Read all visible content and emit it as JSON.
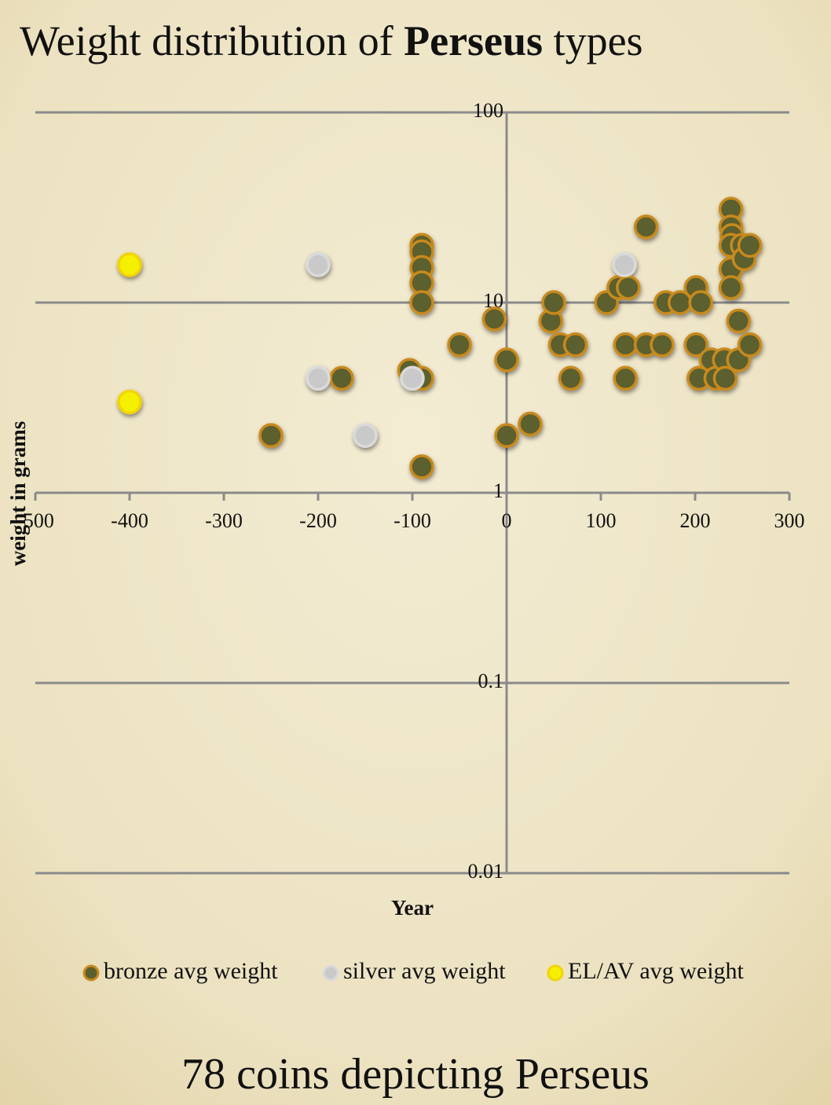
{
  "chart_data": {
    "type": "scatter",
    "title_parts": [
      {
        "text": "Weight distribution of "
      },
      {
        "text": "Perseus",
        "bold": true
      },
      {
        "text": " types"
      }
    ],
    "xlabel": "Year",
    "ylabel": "weight in grams",
    "footer": "78 coins depicting Perseus",
    "log_y": true,
    "xlim": [
      -500,
      300
    ],
    "ylim": [
      0.01,
      100
    ],
    "xticks": [
      -500,
      -400,
      -300,
      -200,
      -100,
      0,
      100,
      200,
      300
    ],
    "yticks": [
      0.01,
      0.1,
      1,
      10,
      100
    ],
    "grid": true,
    "y_axis_at": 0,
    "x_axis_at": 1,
    "legend": "bottom",
    "series": [
      {
        "name": "bronze avg weight",
        "color": "#5c5f2e",
        "edgecolor": "#c88a1f",
        "x": [
          -250,
          -175,
          -90,
          -90,
          -90,
          -90,
          -90,
          -90,
          -90,
          -103,
          -50,
          -13,
          0,
          0,
          25,
          47,
          50,
          57,
          73,
          68,
          106,
          119,
          129,
          126,
          126,
          148,
          148,
          165,
          169,
          184,
          201,
          206,
          201,
          204,
          217,
          222,
          231,
          232,
          238,
          238,
          239,
          238,
          238,
          238,
          246,
          246,
          250,
          252,
          258,
          258
        ],
        "values": [
          2.0,
          4.0,
          20,
          18.5,
          15.3,
          12.7,
          10,
          4.0,
          1.37,
          4.4,
          6.0,
          8.2,
          5.0,
          2.0,
          2.3,
          8.0,
          10,
          6,
          6,
          4,
          10,
          12,
          12,
          6,
          4,
          6,
          25,
          6,
          10,
          10,
          12,
          10,
          6,
          4,
          5,
          4,
          5,
          4,
          31,
          25,
          22.5,
          20,
          15,
          12,
          8,
          5,
          20,
          17,
          20,
          6
        ]
      },
      {
        "name": "silver avg weight",
        "color": "#c9c9c9",
        "edgecolor": "#dadada",
        "x": [
          -200,
          -200,
          -150,
          -100,
          125
        ],
        "values": [
          15.8,
          4,
          2,
          4,
          15.8
        ]
      },
      {
        "name": "EL/AV avg weight",
        "color": "#f5f000",
        "edgecolor": "#f2d400",
        "x": [
          -400,
          -400
        ],
        "values": [
          15.8,
          3.0
        ]
      }
    ]
  }
}
